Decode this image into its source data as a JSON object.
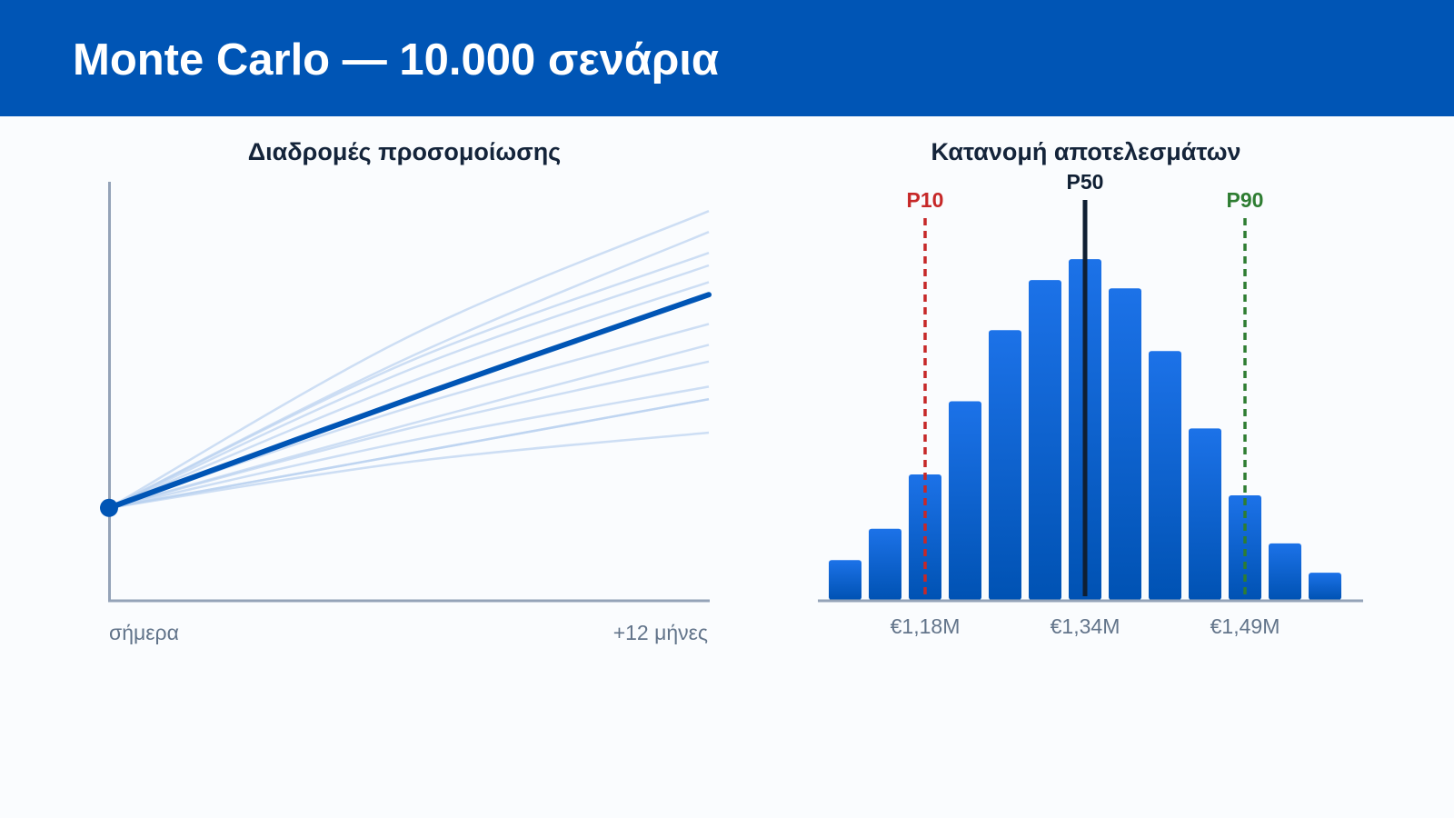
{
  "header": {
    "title": "Monte Carlo — 10.000 σενάρια"
  },
  "colors": {
    "header_bg": "#0055b5",
    "median_line": "#0055b5",
    "paths": "#b9d2f0",
    "bars_top": "#1c72e8",
    "bars_bottom": "#0052b3",
    "p10": "#c62828",
    "p50": "#0f1f33",
    "p90": "#2e7d32",
    "axis": "#94a3b8"
  },
  "chart_data": [
    {
      "type": "line",
      "title": "Διαδρομές προσομοίωσης",
      "x": [
        0,
        6,
        12
      ],
      "x_tick_labels": [
        "σήμερα",
        "+12 μήνες"
      ],
      "ylim": [
        0,
        100
      ],
      "grid": false,
      "series": [
        {
          "values": [
            22,
            63,
            93
          ]
        },
        {
          "values": [
            22,
            58,
            88
          ]
        },
        {
          "values": [
            22,
            57,
            83
          ]
        },
        {
          "values": [
            22,
            55,
            80
          ]
        },
        {
          "values": [
            22,
            52,
            76
          ]
        },
        {
          "values": [
            22,
            46,
            66
          ]
        },
        {
          "values": [
            22,
            42,
            61
          ]
        },
        {
          "values": [
            22,
            41,
            57
          ]
        },
        {
          "values": [
            22,
            38,
            51
          ]
        },
        {
          "values": [
            22,
            35,
            48
          ]
        },
        {
          "values": [
            22,
            35,
            48
          ]
        },
        {
          "values": [
            22,
            33,
            40
          ]
        },
        {
          "values": [
            22,
            48,
            73
          ],
          "median": true
        }
      ]
    },
    {
      "type": "bar",
      "title": "Κατανομή αποτελεσμάτων",
      "values": [
        9.5,
        17,
        30,
        47.5,
        64.5,
        76.5,
        81.5,
        74.5,
        59.5,
        41,
        25,
        13.5,
        6.5
      ],
      "ylim": [
        0,
        100
      ],
      "x_ticks": [
        {
          "bar": 2,
          "label": "€1,18M"
        },
        {
          "bar": 6,
          "label": "€1,34M"
        },
        {
          "bar": 10,
          "label": "€1,49M"
        }
      ],
      "percentiles": [
        {
          "label": "P10",
          "bar": 2,
          "style": "dashed",
          "color": "#c62828"
        },
        {
          "label": "P50",
          "bar": 6,
          "style": "solid",
          "color": "#0f1f33"
        },
        {
          "label": "P90",
          "bar": 10,
          "style": "dashed",
          "color": "#2e7d32"
        }
      ]
    }
  ]
}
